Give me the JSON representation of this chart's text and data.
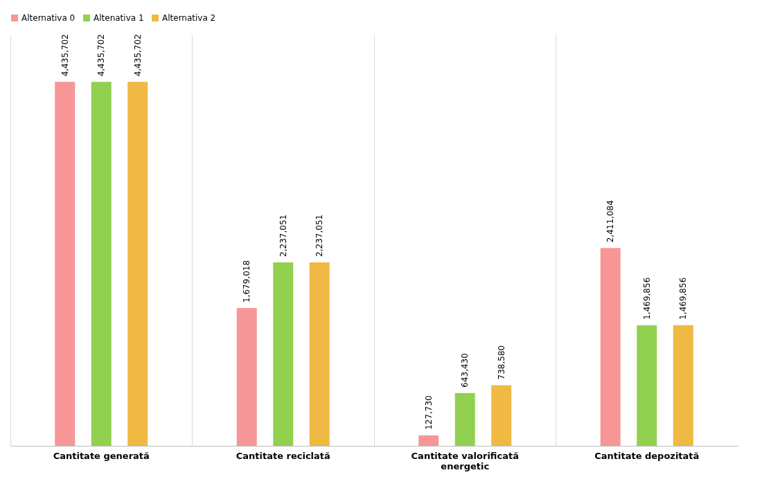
{
  "chart_data": {
    "type": "bar",
    "categories": [
      "Cantitate generată",
      "Cantitate reciclată",
      "Cantitate valorificată energetic",
      "Cantitate depozitată"
    ],
    "series": [
      {
        "name": "Alternativa 0",
        "color": "#f79696",
        "values": [
          4435702,
          1679018,
          127730,
          2411084
        ],
        "value_labels": [
          "4,435,702",
          "1,679,018",
          "127,730",
          "2,411,084"
        ]
      },
      {
        "name": "Altenativa 1",
        "color": "#92d050",
        "values": [
          4435702,
          2237051,
          643430,
          1469856
        ],
        "value_labels": [
          "4,435,702",
          "2,237,051",
          "643,430",
          "1,469,856"
        ]
      },
      {
        "name": "Alternativa 2",
        "color": "#f0b944",
        "values": [
          4435702,
          2237051,
          738580,
          1469856
        ],
        "value_labels": [
          "4,435,702",
          "2,237,051",
          "738,580",
          "1,469,856"
        ]
      }
    ],
    "grid": "x",
    "legend": "top"
  }
}
